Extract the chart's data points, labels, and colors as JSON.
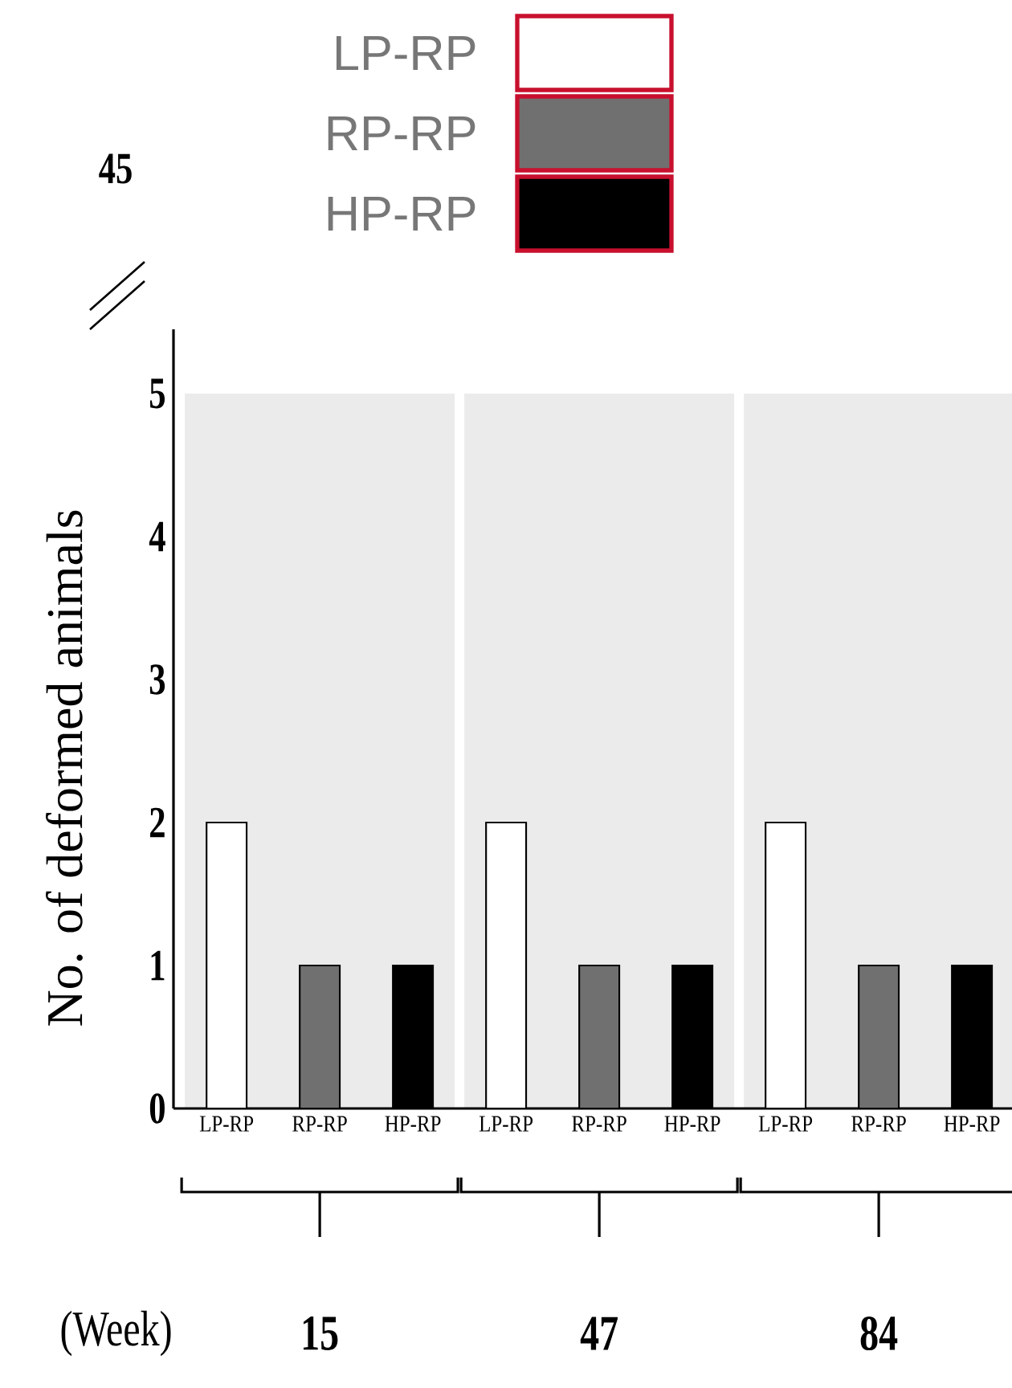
{
  "chart_data": {
    "type": "bar",
    "ylabel": "No. of deformed animals",
    "categories": [
      "LP-RP",
      "RP-RP",
      "HP-RP",
      "LP-RP",
      "RP-RP",
      "HP-RP",
      "LP-RP",
      "RP-RP",
      "HP-RP"
    ],
    "series": [
      {
        "name": "LP-RP",
        "color": "#ffffff",
        "values": [
          2,
          null,
          null,
          2,
          null,
          null,
          2,
          null,
          null
        ]
      },
      {
        "name": "RP-RP",
        "color": "#707070",
        "values": [
          null,
          1,
          null,
          null,
          1,
          null,
          null,
          1,
          null
        ]
      },
      {
        "name": "HP-RP",
        "color": "#000000",
        "values": [
          null,
          null,
          1,
          null,
          null,
          1,
          null,
          null,
          1
        ]
      }
    ],
    "ylim": [
      0,
      5
    ],
    "yticks": [
      0,
      1,
      2,
      3,
      4,
      5
    ],
    "legend": "top",
    "annotations": [
      "45",
      "(Week)",
      "15",
      "47",
      "84"
    ]
  }
}
